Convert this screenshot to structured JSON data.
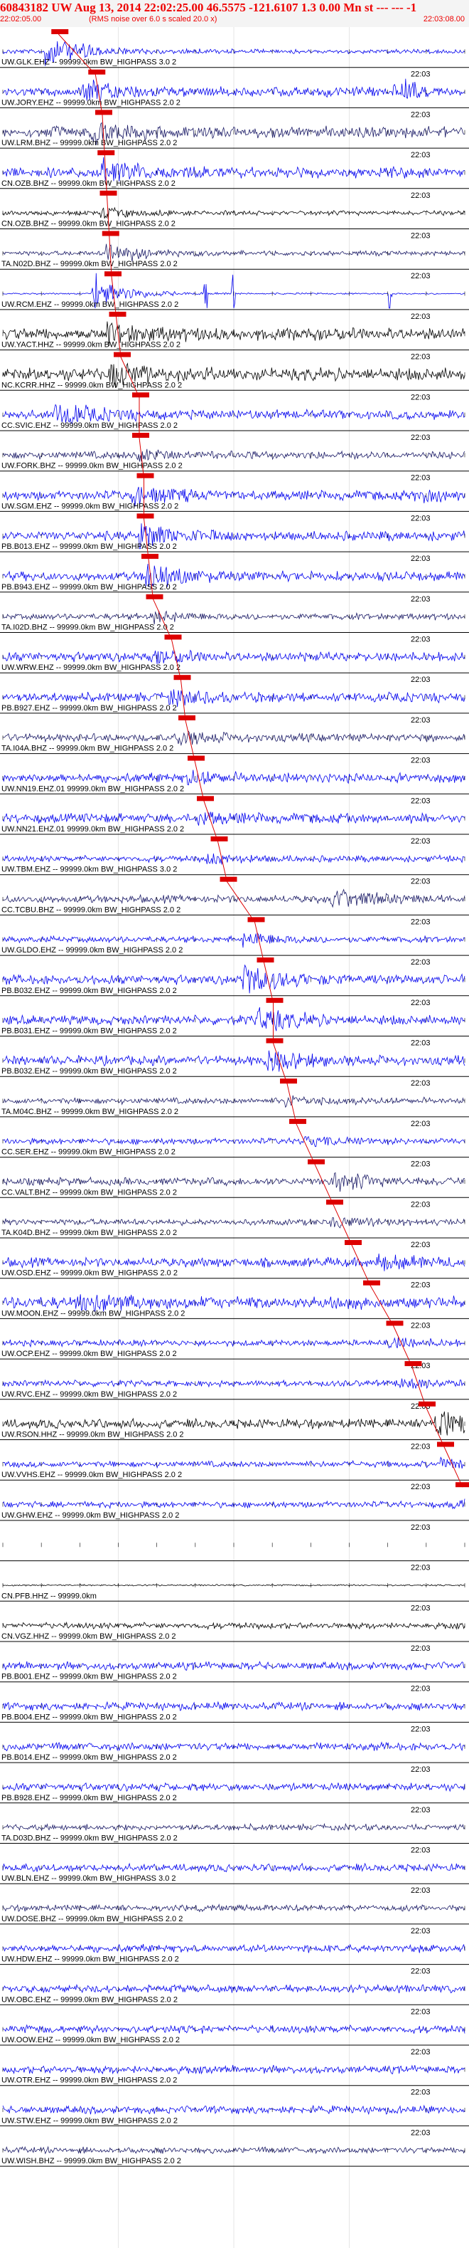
{
  "header": {
    "title": "60843182 UW Aug 13, 2014 22:02:25.00   46.5575 -121.6107  1.3 0.00 Mn st --- --- -1",
    "subtitle": "(RMS noise over 6.0 s scaled 20.0 x)",
    "start_time": "22:02:05.00",
    "end_time": "22:03:08.00"
  },
  "colors": {
    "header": "#ee0000",
    "pick": "#dd0000",
    "black": "#000000",
    "blue": "#0000ee",
    "navy": "#1a1a66"
  },
  "marker_label": "22:03",
  "traces": [
    {
      "label": "UW.GLK.EHZ -- 99999.0km BW_HIGHPASS  3.0  2",
      "color": "blue",
      "amp": 3,
      "event": 0.1,
      "evAmp": 20,
      "pick": 0.105
    },
    {
      "label": "UW.JORY.EHZ -- 99999.0km BW_HIGHPASS  2.0  2",
      "color": "blue",
      "amp": 6,
      "event": 0.18,
      "evAmp": 14,
      "pick": 0.185,
      "burst": 0.88
    },
    {
      "label": "UW.LRM.BHZ -- 99999.0km BW_HIGHPASS  2.0  2",
      "color": "navy",
      "amp": 7,
      "event": 0.2,
      "evAmp": 12,
      "pick": 0.2
    },
    {
      "label": "CN.OZB.BHZ -- 99999.0km BW_HIGHPASS  2.0  2",
      "color": "blue",
      "amp": 7,
      "event": 0.22,
      "evAmp": 13,
      "pick": 0.205
    },
    {
      "label": "CN.OZB.BHZ -- 99999.0km BW_HIGHPASS  2.0  2",
      "color": "black",
      "amp": 3,
      "event": 0.22,
      "evAmp": 6,
      "pick": 0.21
    },
    {
      "label": "TA.N02D.BHZ -- 99999.0km BW_HIGHPASS  2.0  2",
      "color": "navy",
      "amp": 3,
      "event": 0.23,
      "evAmp": 14,
      "pick": 0.215
    },
    {
      "label": "UW.RCM.EHZ -- 99999.0km BW_HIGHPASS  2.0  2",
      "color": "blue",
      "amp": 1,
      "event": 0.2,
      "evAmp": 20,
      "pick": 0.22,
      "spikes": [
        0.2,
        0.44,
        0.5,
        0.84
      ]
    },
    {
      "label": "UW.YACT.HHZ -- 99999.0km BW_HIGHPASS  2.0  2",
      "color": "black",
      "amp": 8,
      "event": 0.23,
      "evAmp": 10,
      "pick": 0.23
    },
    {
      "label": "NC.KCRR.HHZ -- 99999.0km BW_HIGHPASS  2.0  2",
      "color": "black",
      "amp": 8,
      "event": 0.24,
      "evAmp": 12,
      "pick": 0.24
    },
    {
      "label": "CC.SVIC.EHZ -- 99999.0km BW_HIGHPASS  2.0  2",
      "color": "blue",
      "amp": 6,
      "event": 0.12,
      "evAmp": 14,
      "pick": 0.28
    },
    {
      "label": "UW.FORK.BHZ -- 99999.0km BW_HIGHPASS  2.0  2",
      "color": "navy",
      "amp": 5,
      "event": 0.3,
      "evAmp": 6,
      "pick": 0.28
    },
    {
      "label": "UW.SGM.EHZ -- 99999.0km BW_HIGHPASS  2.0  2",
      "color": "blue",
      "amp": 6,
      "event": 0.29,
      "evAmp": 12,
      "pick": 0.29,
      "burst": 0.92
    },
    {
      "label": "PB.B013.EHZ -- 99999.0km BW_HIGHPASS  2.0  2",
      "color": "blue",
      "amp": 6,
      "event": 0.3,
      "evAmp": 16,
      "pick": 0.29
    },
    {
      "label": "PB.B943.EHZ -- 99999.0km BW_HIGHPASS  2.0  2",
      "color": "blue",
      "amp": 6,
      "event": 0.32,
      "evAmp": 16,
      "pick": 0.3
    },
    {
      "label": "TA.I02D.BHZ -- 99999.0km BW_HIGHPASS  2.0  2",
      "color": "navy",
      "amp": 4,
      "event": 0.33,
      "evAmp": 6,
      "pick": 0.31
    },
    {
      "label": "UW.WRW.EHZ -- 99999.0km BW_HIGHPASS  2.0  2",
      "color": "blue",
      "amp": 6,
      "event": 0.34,
      "evAmp": 6,
      "pick": 0.35
    },
    {
      "label": "PB.B927.EHZ -- 99999.0km BW_HIGHPASS  2.0  2",
      "color": "blue",
      "amp": 6,
      "event": 0.37,
      "evAmp": 9,
      "pick": 0.37
    },
    {
      "label": "TA.I04A.BHZ -- 99999.0km BW_HIGHPASS  2.0  2",
      "color": "navy",
      "amp": 5,
      "event": 0.39,
      "evAmp": 8,
      "pick": 0.38
    },
    {
      "label": "UW.NN19.EHZ.01 99999.0km BW_HIGHPASS  2.0  2",
      "color": "blue",
      "amp": 6,
      "event": 0.41,
      "evAmp": 6,
      "pick": 0.4
    },
    {
      "label": "UW.NN21.EHZ.01 99999.0km BW_HIGHPASS  2.0  2",
      "color": "blue",
      "amp": 6,
      "event": 0.43,
      "evAmp": 6,
      "pick": 0.42
    },
    {
      "label": "UW.TBM.EHZ -- 99999.0km BW_HIGHPASS  3.0  2",
      "color": "blue",
      "amp": 4,
      "event": 0.45,
      "evAmp": 6,
      "pick": 0.45
    },
    {
      "label": "CC.TCBU.BHZ -- 99999.0km BW_HIGHPASS  2.0  2",
      "color": "navy",
      "amp": 5,
      "event": 0.72,
      "evAmp": 12,
      "pick": 0.47
    },
    {
      "label": "UW.GLDO.EHZ -- 99999.0km BW_HIGHPASS  2.0  2",
      "color": "blue",
      "amp": 4,
      "event": 0.53,
      "evAmp": 8,
      "pick": 0.53
    },
    {
      "label": "PB.B032.EHZ -- 99999.0km BW_HIGHPASS  2.0  2",
      "color": "blue",
      "amp": 6,
      "event": 0.53,
      "evAmp": 18,
      "pick": 0.55
    },
    {
      "label": "PB.B031.EHZ -- 99999.0km BW_HIGHPASS  2.0  2",
      "color": "blue",
      "amp": 6,
      "event": 0.56,
      "evAmp": 14,
      "pick": 0.57
    },
    {
      "label": "PB.B032.EHZ -- 99999.0km BW_HIGHPASS  2.0  2",
      "color": "blue",
      "amp": 6,
      "event": 0.58,
      "evAmp": 12,
      "pick": 0.57
    },
    {
      "label": "TA.M04C.BHZ -- 99999.0km BW_HIGHPASS  2.0  2",
      "color": "navy",
      "amp": 4,
      "event": 0.62,
      "evAmp": 6,
      "pick": 0.6
    },
    {
      "label": "CC.SER.EHZ -- 99999.0km BW_HIGHPASS  2.0  2",
      "color": "blue",
      "amp": 4,
      "event": 0.66,
      "evAmp": 6,
      "pick": 0.62
    },
    {
      "label": "CC.VALT.BHZ -- 99999.0km BW_HIGHPASS  2.0  2",
      "color": "navy",
      "amp": 5,
      "event": 0.72,
      "evAmp": 12,
      "pick": 0.66
    },
    {
      "label": "TA.K04D.BHZ -- 99999.0km BW_HIGHPASS  2.0  2",
      "color": "navy",
      "amp": 4,
      "event": 0.72,
      "evAmp": 6,
      "pick": 0.7
    },
    {
      "label": "UW.OSD.EHZ -- 99999.0km BW_HIGHPASS  2.0  2",
      "color": "blue",
      "amp": 6,
      "event": 0.82,
      "evAmp": 8,
      "pick": 0.74
    },
    {
      "label": "UW.MOON.EHZ -- 99999.0km BW_HIGHPASS  2.0  2",
      "color": "blue",
      "amp": 8,
      "event": 0.17,
      "evAmp": 10,
      "pick": 0.78
    },
    {
      "label": "UW.OCP.EHZ -- 99999.0km BW_HIGHPASS  2.0  2",
      "color": "blue",
      "amp": 4,
      "event": 0.84,
      "evAmp": 6,
      "pick": 0.83
    },
    {
      "label": "UW.RVC.EHZ -- 99999.0km BW_HIGHPASS  2.0  2",
      "color": "blue",
      "amp": 4,
      "event": 0.87,
      "evAmp": 6,
      "pick": 0.87
    },
    {
      "label": "UW.RSON.HHZ -- 99999.0km BW_HIGHPASS  2.0  2",
      "color": "black",
      "amp": 6,
      "event": 0.94,
      "evAmp": 18,
      "pick": 0.9
    },
    {
      "label": "UW.VVHS.EHZ -- 99999.0km BW_HIGHPASS  2.0  2",
      "color": "blue",
      "amp": 4,
      "event": 0.95,
      "evAmp": 6,
      "pick": 0.94
    },
    {
      "label": "UW.GHW.EHZ -- 99999.0km BW_HIGHPASS  2.0  2",
      "color": "blue",
      "amp": 4,
      "event": 0.98,
      "evAmp": 6,
      "pick": 0.98
    },
    {
      "label": "",
      "color": "blue",
      "amp": 0
    },
    {
      "label": "CN.PFB.HHZ -- 99999.0km",
      "color": "black",
      "amp": 1
    },
    {
      "label": "CN.VGZ.HHZ -- 99999.0km BW_HIGHPASS  2.0  2",
      "color": "black",
      "amp": 4
    },
    {
      "label": "PB.B001.EHZ -- 99999.0km BW_HIGHPASS  2.0  2",
      "color": "blue",
      "amp": 5
    },
    {
      "label": "PB.B004.EHZ -- 99999.0km BW_HIGHPASS  2.0  2",
      "color": "blue",
      "amp": 5
    },
    {
      "label": "PB.B014.EHZ -- 99999.0km BW_HIGHPASS  2.0  2",
      "color": "blue",
      "amp": 5
    },
    {
      "label": "PB.B928.EHZ -- 99999.0km BW_HIGHPASS  2.0  2",
      "color": "blue",
      "amp": 5
    },
    {
      "label": "TA.D03D.BHZ -- 99999.0km BW_HIGHPASS  2.0  2",
      "color": "navy",
      "amp": 4
    },
    {
      "label": "UW.BLN.EHZ -- 99999.0km BW_HIGHPASS  3.0  2",
      "color": "blue",
      "amp": 5
    },
    {
      "label": "UW.DOSE.BHZ -- 99999.0km BW_HIGHPASS  2.0  2",
      "color": "navy",
      "amp": 4
    },
    {
      "label": "UW.HDW.EHZ -- 99999.0km BW_HIGHPASS  2.0  2",
      "color": "blue",
      "amp": 5
    },
    {
      "label": "UW.OBC.EHZ -- 99999.0km BW_HIGHPASS  2.0  2",
      "color": "blue",
      "amp": 5
    },
    {
      "label": "UW.OOW.EHZ -- 99999.0km BW_HIGHPASS  2.0  2",
      "color": "blue",
      "amp": 5
    },
    {
      "label": "UW.OTR.EHZ -- 99999.0km BW_HIGHPASS  2.0  2",
      "color": "blue",
      "amp": 5
    },
    {
      "label": "UW.STW.EHZ -- 99999.0km BW_HIGHPASS  2.0  2",
      "color": "blue",
      "amp": 5
    },
    {
      "label": "UW.WISH.BHZ -- 99999.0km BW_HIGHPASS  2.0  2",
      "color": "navy",
      "amp": 4
    }
  ]
}
